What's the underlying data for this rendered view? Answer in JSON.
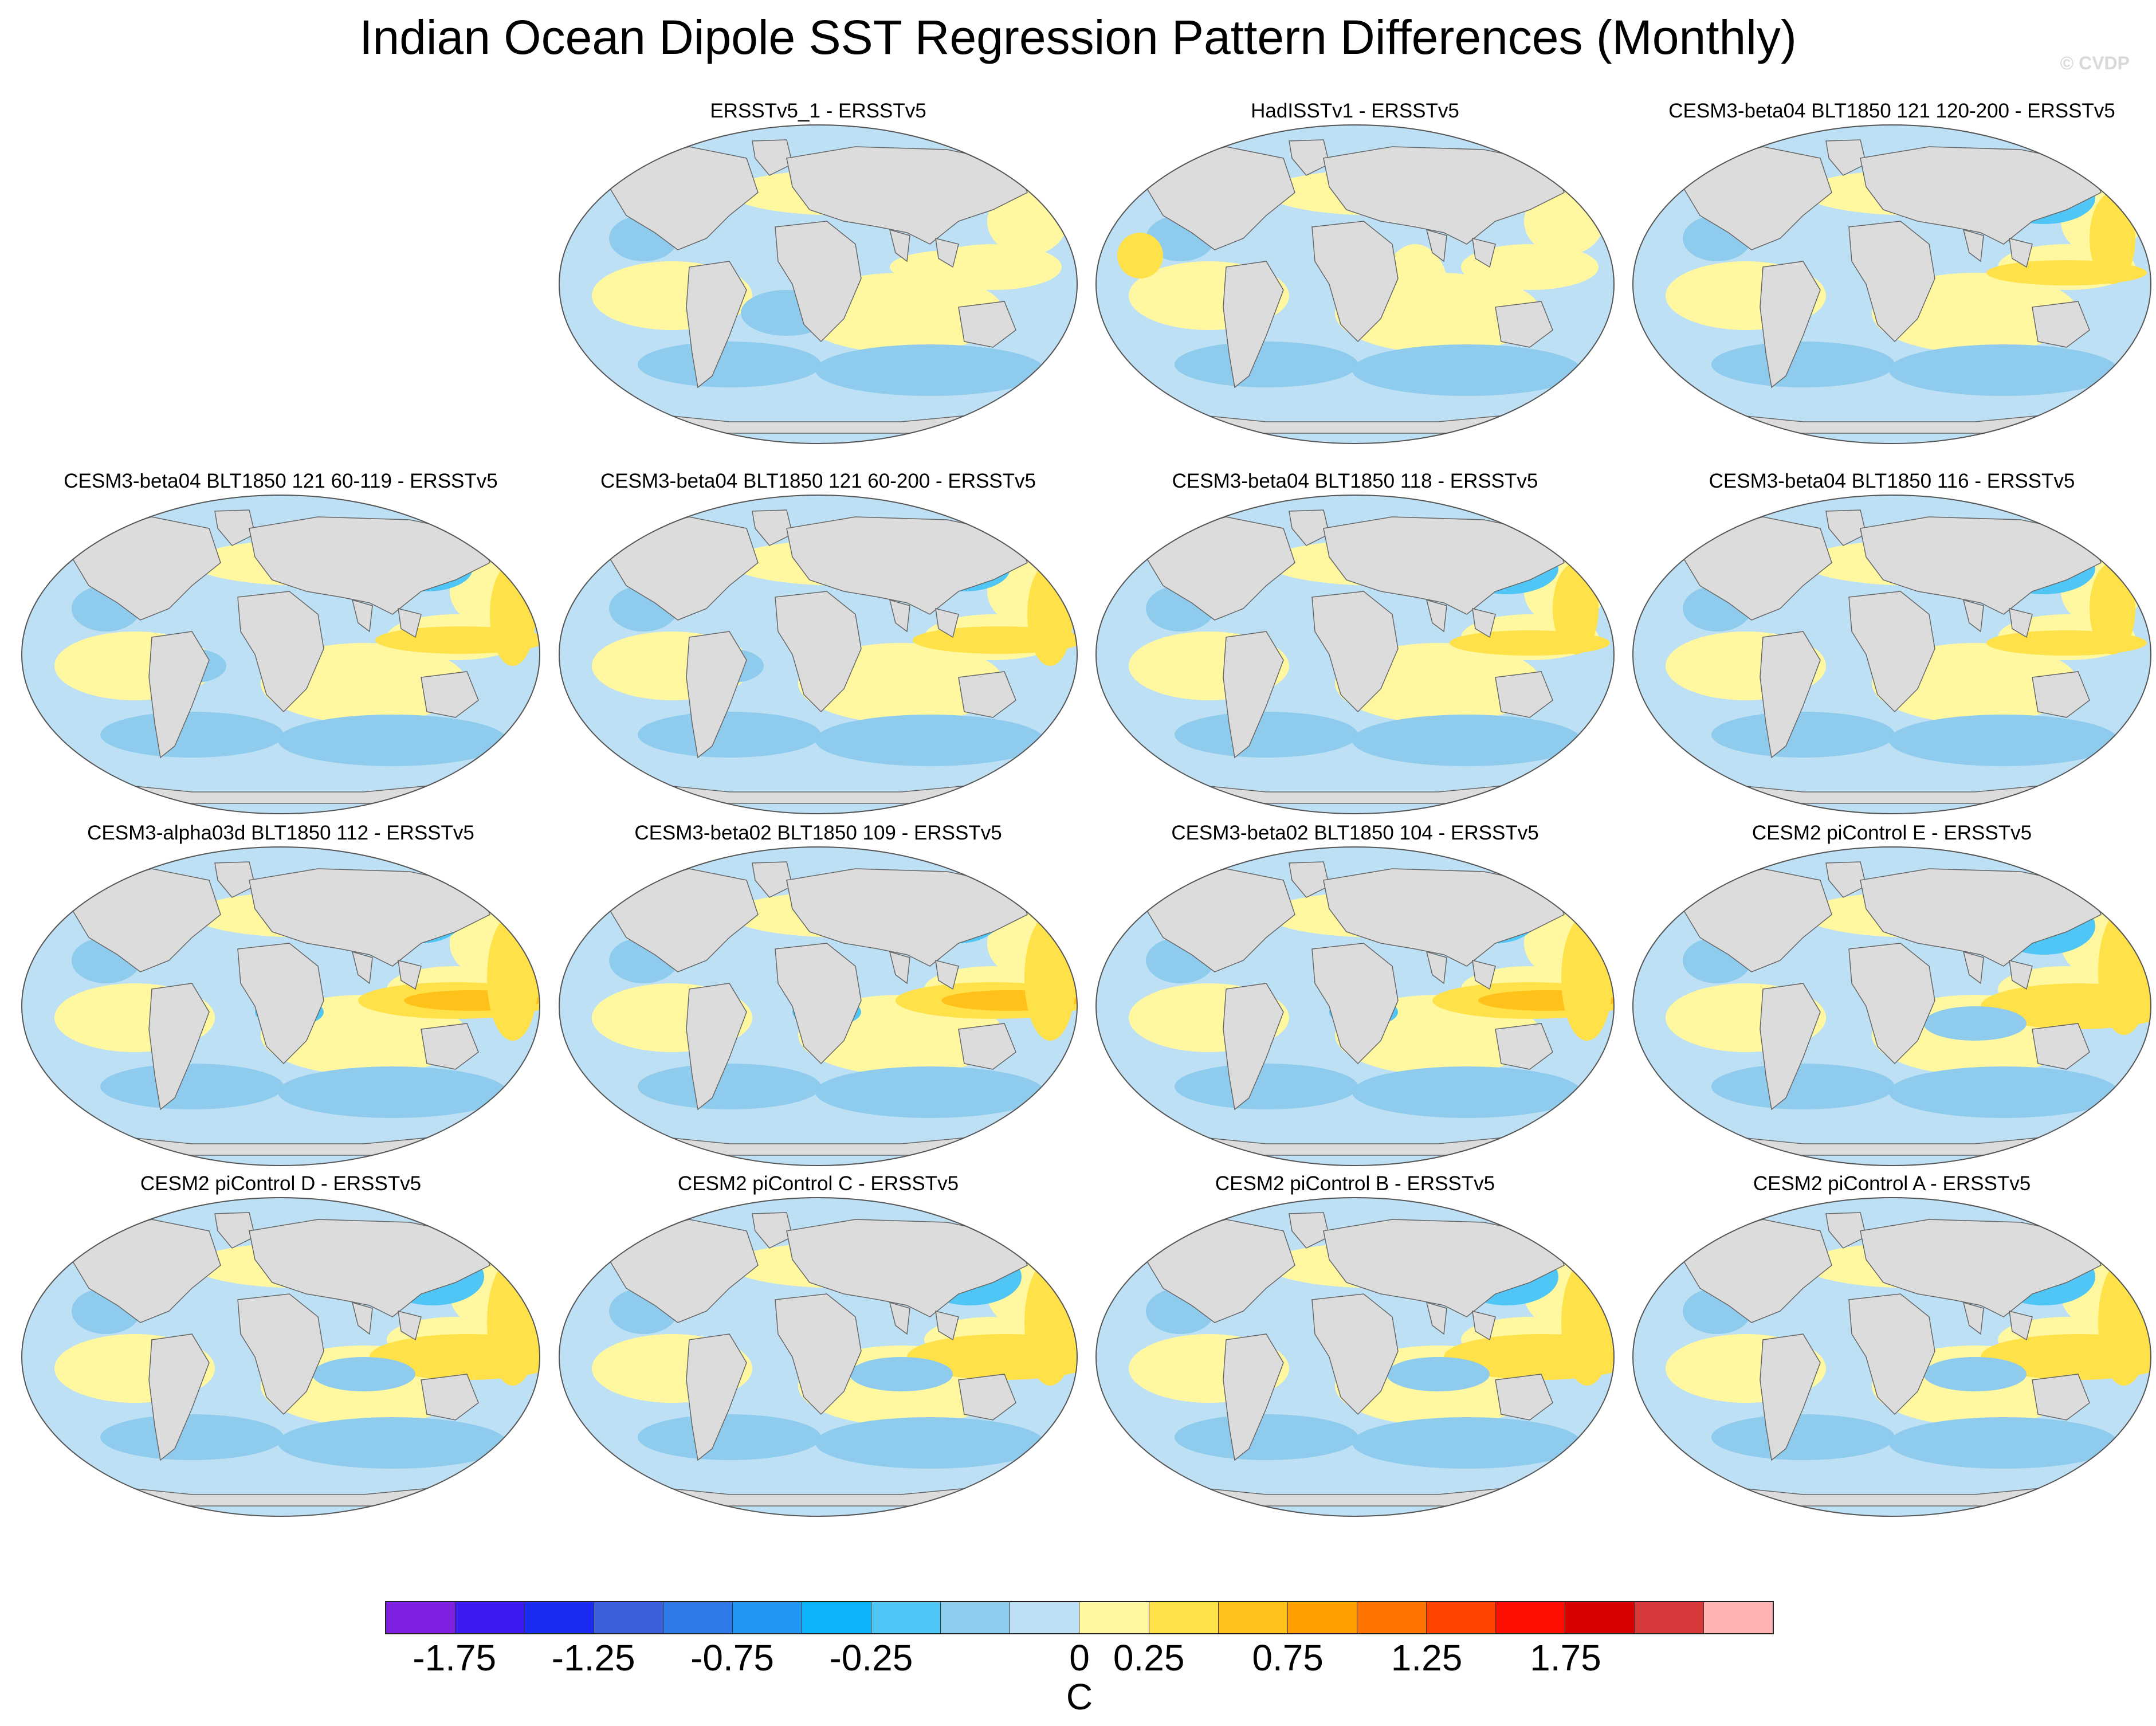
{
  "title": "Indian Ocean Dipole SST Regression Pattern Differences (Monthly)",
  "watermark": "© CVDP",
  "panels": [
    {
      "label": "ERSSTv5_1 - ERSSTv5",
      "variant": 0
    },
    {
      "label": "HadISSTv1 - ERSSTv5",
      "variant": 1
    },
    {
      "label": "CESM3-beta04 BLT1850 121 120-200 - ERSSTv5",
      "variant": 2
    },
    {
      "label": "CESM3-beta04 BLT1850 121 60-119 - ERSSTv5",
      "variant": 3
    },
    {
      "label": "CESM3-beta04 BLT1850 121 60-200 - ERSSTv5",
      "variant": 3
    },
    {
      "label": "CESM3-beta04 BLT1850 118 - ERSSTv5",
      "variant": 2
    },
    {
      "label": "CESM3-beta04 BLT1850 116 - ERSSTv5",
      "variant": 2
    },
    {
      "label": "CESM3-alpha03d BLT1850 112 - ERSSTv5",
      "variant": 4
    },
    {
      "label": "CESM3-beta02 BLT1850 109 - ERSSTv5",
      "variant": 4
    },
    {
      "label": "CESM3-beta02 BLT1850 104 - ERSSTv5",
      "variant": 4
    },
    {
      "label": "CESM2 piControl E - ERSSTv5",
      "variant": 5
    },
    {
      "label": "CESM2 piControl D - ERSSTv5",
      "variant": 5
    },
    {
      "label": "CESM2 piControl C - ERSSTv5",
      "variant": 5
    },
    {
      "label": "CESM2 piControl B - ERSSTv5",
      "variant": 5
    },
    {
      "label": "CESM2 piControl A - ERSSTv5",
      "variant": 5
    }
  ],
  "colorbar": {
    "colors": [
      "#7f1fe0",
      "#3a1aef",
      "#1a2cf0",
      "#3b5fdc",
      "#2f7ae6",
      "#2196f3",
      "#0ab3fa",
      "#4fc6f6",
      "#8ecbec",
      "#bde0f5",
      "#fff8a0",
      "#ffe24a",
      "#ffc11a",
      "#ff9f00",
      "#ff7300",
      "#ff4400",
      "#ff0d00",
      "#d90000",
      "#d63a3a",
      "#ffb3b3"
    ],
    "tick_labels": [
      "-1.75",
      "-1.25",
      "-0.75",
      "-0.25",
      "0",
      "0.25",
      "0.75",
      "1.25",
      "1.75"
    ],
    "unit": "C"
  }
}
